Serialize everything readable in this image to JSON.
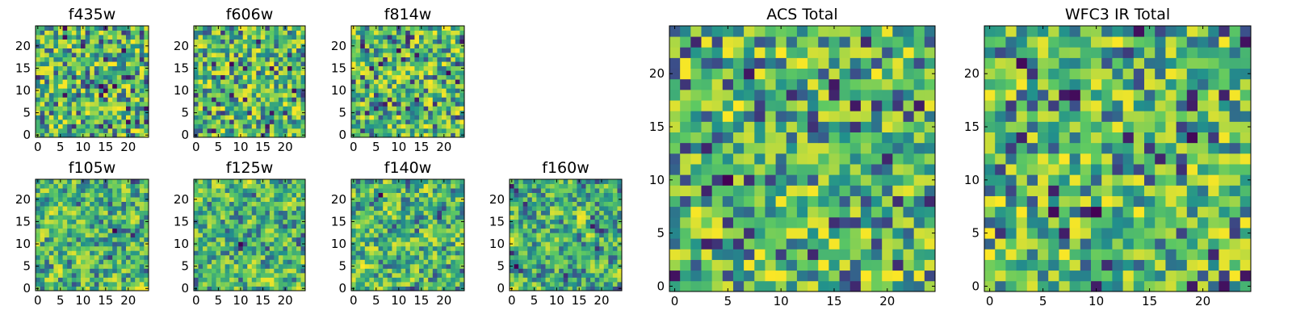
{
  "chart_data": [
    {
      "type": "heatmap",
      "title": "f435w",
      "xlim": [
        -0.5,
        24.5
      ],
      "ylim": [
        -0.5,
        24.5
      ],
      "xticks": [
        0,
        5,
        10,
        15,
        20
      ],
      "yticks": [
        0,
        5,
        10,
        15,
        20
      ],
      "grid_size": [
        25,
        25
      ],
      "colormap": "viridis",
      "values_description_free": true
    },
    {
      "type": "heatmap",
      "title": "f606w",
      "xlim": [
        -0.5,
        24.5
      ],
      "ylim": [
        -0.5,
        24.5
      ],
      "xticks": [
        0,
        5,
        10,
        15,
        20
      ],
      "yticks": [
        0,
        5,
        10,
        15,
        20
      ],
      "grid_size": [
        25,
        25
      ],
      "colormap": "viridis"
    },
    {
      "type": "heatmap",
      "title": "f814w",
      "xlim": [
        -0.5,
        24.5
      ],
      "ylim": [
        -0.5,
        24.5
      ],
      "xticks": [
        0,
        5,
        10,
        15,
        20
      ],
      "yticks": [
        0,
        5,
        10,
        15,
        20
      ],
      "grid_size": [
        25,
        25
      ],
      "colormap": "viridis"
    },
    {
      "type": "heatmap",
      "title": "f105w",
      "xlim": [
        -0.5,
        24.5
      ],
      "ylim": [
        -0.5,
        24.5
      ],
      "xticks": [
        0,
        5,
        10,
        15,
        20
      ],
      "yticks": [
        0,
        5,
        10,
        15,
        20
      ],
      "grid_size": [
        25,
        25
      ],
      "colormap": "viridis"
    },
    {
      "type": "heatmap",
      "title": "f125w",
      "xlim": [
        -0.5,
        24.5
      ],
      "ylim": [
        -0.5,
        24.5
      ],
      "xticks": [
        0,
        5,
        10,
        15,
        20
      ],
      "yticks": [
        0,
        5,
        10,
        15,
        20
      ],
      "grid_size": [
        25,
        25
      ],
      "colormap": "viridis"
    },
    {
      "type": "heatmap",
      "title": "f140w",
      "xlim": [
        -0.5,
        24.5
      ],
      "ylim": [
        -0.5,
        24.5
      ],
      "xticks": [
        0,
        5,
        10,
        15,
        20
      ],
      "yticks": [
        0,
        5,
        10,
        15,
        20
      ],
      "grid_size": [
        25,
        25
      ],
      "colormap": "viridis"
    },
    {
      "type": "heatmap",
      "title": "f160w",
      "xlim": [
        -0.5,
        24.5
      ],
      "ylim": [
        -0.5,
        24.5
      ],
      "xticks": [
        0,
        5,
        10,
        15,
        20
      ],
      "yticks": [
        0,
        5,
        10,
        15,
        20
      ],
      "grid_size": [
        25,
        25
      ],
      "colormap": "viridis"
    },
    {
      "type": "heatmap",
      "title": "ACS Total",
      "xlim": [
        -0.5,
        24.5
      ],
      "ylim": [
        -0.5,
        24.5
      ],
      "xticks": [
        0,
        5,
        10,
        15,
        20
      ],
      "yticks": [
        0,
        5,
        10,
        15,
        20
      ],
      "grid_size": [
        25,
        25
      ],
      "colormap": "viridis"
    },
    {
      "type": "heatmap",
      "title": "WFC3 IR Total",
      "xlim": [
        -0.5,
        24.5
      ],
      "ylim": [
        -0.5,
        24.5
      ],
      "xticks": [
        0,
        5,
        10,
        15,
        20
      ],
      "yticks": [
        0,
        5,
        10,
        15,
        20
      ],
      "grid_size": [
        25,
        25
      ],
      "colormap": "viridis"
    }
  ]
}
